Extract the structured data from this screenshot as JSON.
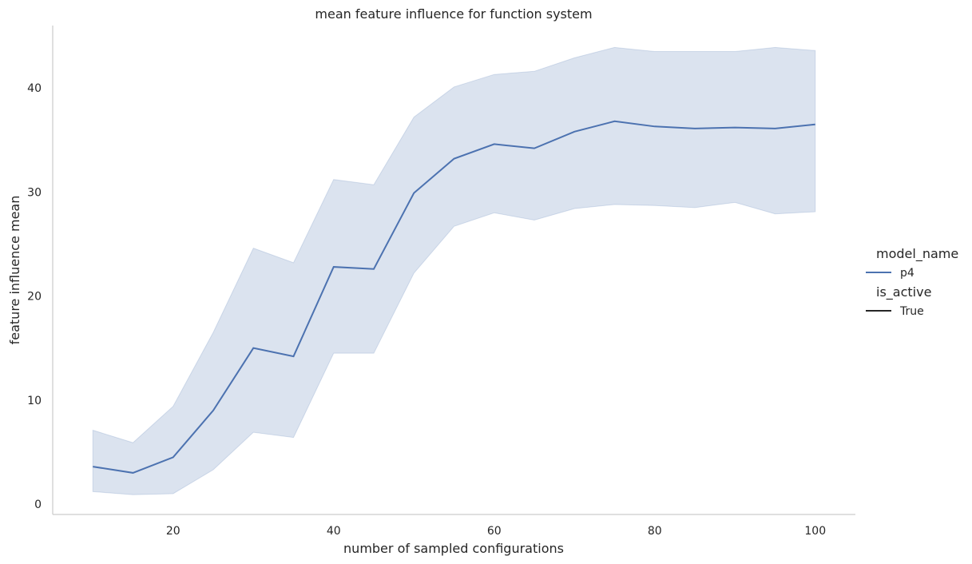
{
  "chart_data": {
    "type": "line",
    "title": "mean feature influence for function system",
    "xlabel": "number of sampled configurations",
    "ylabel": "feature influence mean",
    "xlim": [
      5,
      105
    ],
    "ylim": [
      -1,
      46
    ],
    "xticks": [
      20,
      40,
      60,
      80,
      100
    ],
    "yticks": [
      0,
      10,
      20,
      30,
      40
    ],
    "grid": false,
    "legend_placement": "right",
    "x": [
      10,
      15,
      20,
      25,
      30,
      35,
      40,
      45,
      50,
      55,
      60,
      65,
      70,
      75,
      80,
      85,
      90,
      95,
      100
    ],
    "series": [
      {
        "name": "p4",
        "values": [
          3.6,
          3.0,
          4.5,
          9.0,
          15.0,
          14.2,
          22.8,
          22.6,
          29.9,
          33.2,
          34.6,
          34.2,
          35.8,
          36.8,
          36.3,
          36.1,
          36.2,
          36.1,
          36.5
        ],
        "ci_upper": [
          7.1,
          5.9,
          9.4,
          16.5,
          24.6,
          23.2,
          31.2,
          30.7,
          37.2,
          40.1,
          41.3,
          41.6,
          42.9,
          43.9,
          43.5,
          43.5,
          43.5,
          43.9,
          43.6
        ],
        "ci_lower": [
          1.2,
          0.9,
          1.0,
          3.3,
          6.9,
          6.4,
          14.5,
          14.5,
          22.2,
          26.7,
          28.0,
          27.3,
          28.4,
          28.8,
          28.7,
          28.5,
          29.0,
          27.9,
          28.1
        ],
        "color": "#4c72b0",
        "band_color": "#4c72b0"
      }
    ],
    "legend": {
      "groups": [
        {
          "title": "model_name",
          "entries": [
            {
              "label": "p4",
              "color": "#4c72b0"
            }
          ]
        },
        {
          "title": "is_active",
          "entries": [
            {
              "label": "True",
              "color": "#262626"
            }
          ]
        }
      ]
    }
  }
}
